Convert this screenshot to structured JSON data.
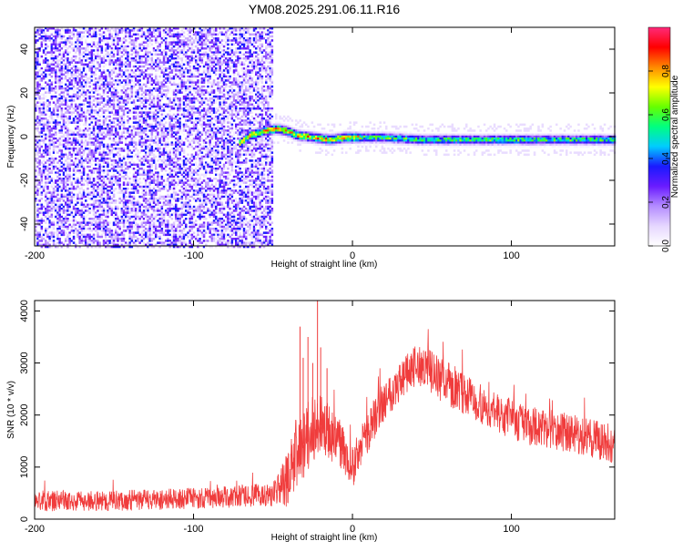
{
  "title": "YM08.2025.291.06.11.R16",
  "chart_data": [
    {
      "type": "heatmap",
      "xlabel": "Height of straight line (km)",
      "ylabel": "Frequency (Hz)",
      "xlim": [
        -200,
        165
      ],
      "ylim": [
        -50,
        50
      ],
      "x_ticks": [
        -200,
        -100,
        0,
        100
      ],
      "y_ticks": [
        -40,
        -20,
        0,
        20,
        40
      ],
      "grid": false,
      "colorbar": {
        "label": "Normalized spectral amplitude",
        "ticks": [
          0.0,
          0.2,
          0.4,
          0.6,
          0.8
        ],
        "range": [
          0,
          1
        ],
        "colormap": [
          "#ffffff",
          "#e6d7ff",
          "#b48cff",
          "#6a1bff",
          "#1a1aff",
          "#00ccff",
          "#00ff80",
          "#66ff00",
          "#ffff00",
          "#ff8800",
          "#ff0000",
          "#ff2a7a"
        ]
      },
      "features": {
        "noise_region_x": [
          -200,
          -50
        ],
        "noise_amplitude": 0.3,
        "signal_start_x": -72,
        "signal_center_hz": [
          [
            -72,
            -3
          ],
          [
            -65,
            1
          ],
          [
            -55,
            3
          ],
          [
            -48,
            4
          ],
          [
            -42,
            3
          ],
          [
            -35,
            1
          ],
          [
            -25,
            0
          ],
          [
            -15,
            -1
          ],
          [
            -5,
            0
          ],
          [
            5,
            0
          ],
          [
            20,
            0
          ],
          [
            40,
            -1
          ],
          [
            80,
            -1
          ],
          [
            120,
            -1
          ],
          [
            160,
            -1
          ]
        ],
        "signal_peak_amplitude": 0.95,
        "halo_width_hz": 4
      }
    },
    {
      "type": "line",
      "xlabel": "Height of straight line (km)",
      "ylabel": "SNR (10 * v/v)",
      "xlim": [
        -200,
        165
      ],
      "ylim": [
        0,
        4200
      ],
      "x_ticks": [
        -200,
        -100,
        0,
        100
      ],
      "y_ticks": [
        0,
        1000,
        2000,
        3000,
        4000
      ],
      "grid": false,
      "series": [
        {
          "color": "#f03c3c",
          "x": [
            -200,
            -160,
            -120,
            -80,
            -60,
            -50,
            -42,
            -36,
            -30,
            -22,
            -10,
            0,
            10,
            20,
            30,
            40,
            45,
            55,
            70,
            90,
            110,
            130,
            150,
            165
          ],
          "y": [
            350,
            350,
            380,
            420,
            460,
            480,
            700,
            1200,
            1500,
            1850,
            1550,
            1000,
            1700,
            2300,
            2650,
            2950,
            2950,
            2700,
            2400,
            2050,
            1800,
            1700,
            1550,
            1450
          ],
          "noise_amplitude": [
            200,
            200,
            200,
            210,
            220,
            240,
            500,
            700,
            700,
            600,
            500,
            400,
            400,
            400,
            400,
            420,
            420,
            420,
            400,
            380,
            380,
            380,
            380,
            380
          ],
          "spikes": [
            {
              "x": -33,
              "y": 3700
            },
            {
              "x": -31,
              "y": 3100
            },
            {
              "x": -28,
              "y": 3500
            },
            {
              "x": -25,
              "y": 3000
            },
            {
              "x": -22,
              "y": 4200
            },
            {
              "x": -20,
              "y": 3300
            },
            {
              "x": -16,
              "y": 2900
            }
          ]
        }
      ]
    }
  ]
}
